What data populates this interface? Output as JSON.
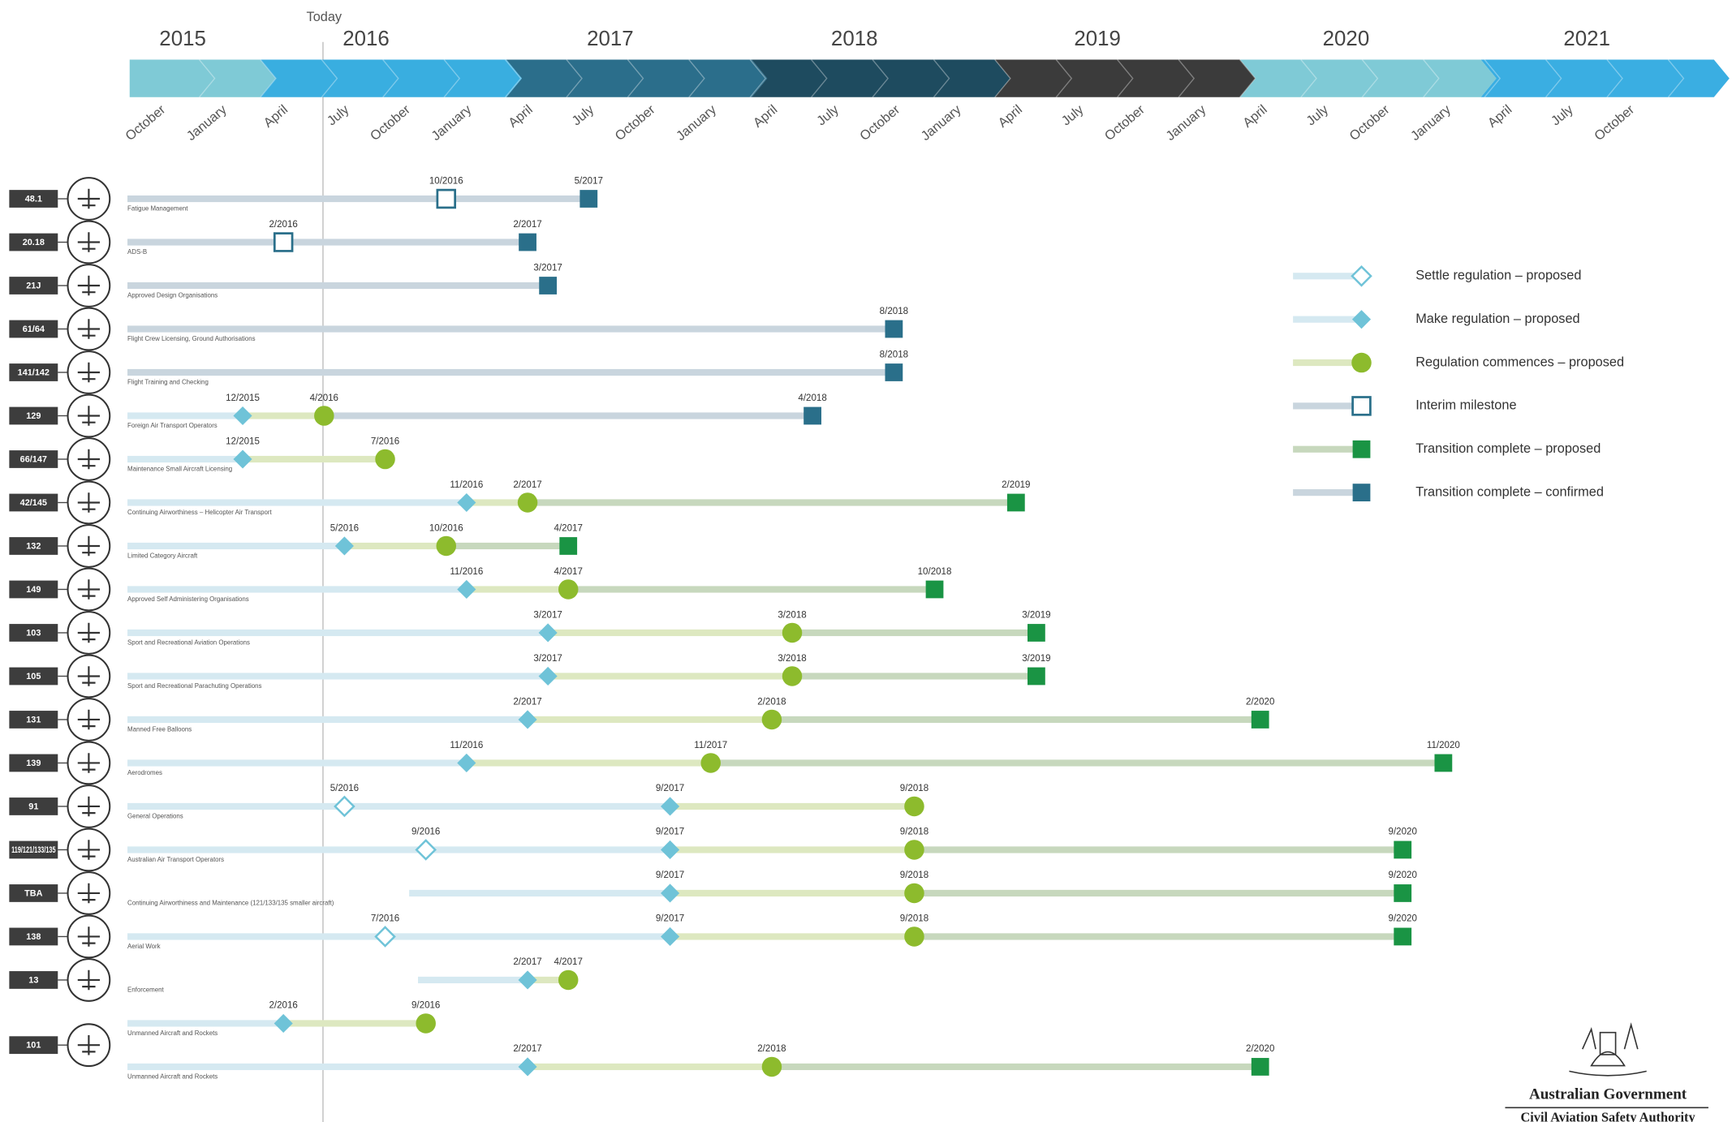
{
  "header": {
    "today": "Today",
    "years": [
      "2015",
      "2016",
      "2017",
      "2018",
      "2019",
      "2020",
      "2021"
    ],
    "months": [
      "October",
      "January",
      "April",
      "July",
      "October",
      "January",
      "April",
      "July",
      "October",
      "January",
      "April",
      "July",
      "October",
      "January",
      "April",
      "July",
      "October",
      "January",
      "April",
      "July",
      "October",
      "January",
      "April",
      "July",
      "October"
    ]
  },
  "rows": [
    {
      "code": "48.1",
      "bars": [
        {
          "description": "Fatigue Management",
          "milestones": [
            {
              "date": "10/2016",
              "legend": 3
            },
            {
              "date": "5/2017",
              "legend": 5
            }
          ]
        }
      ]
    },
    {
      "code": "20.18",
      "bars": [
        {
          "description": "ADS-B",
          "milestones": [
            {
              "date": "2/2016",
              "legend": 3
            },
            {
              "date": "2/2017",
              "legend": 5
            }
          ]
        }
      ]
    },
    {
      "code": "21J",
      "bars": [
        {
          "description": "Approved Design Organisations",
          "milestones": [
            {
              "date": "3/2017",
              "legend": 5
            }
          ]
        }
      ]
    },
    {
      "code": "61/64",
      "bars": [
        {
          "description": "Flight Crew Licensing, Ground Authorisations",
          "milestones": [
            {
              "date": "8/2018",
              "legend": 5
            }
          ]
        }
      ]
    },
    {
      "code": "141/142",
      "bars": [
        {
          "description": "Flight Training and Checking",
          "milestones": [
            {
              "date": "8/2018",
              "legend": 5
            }
          ]
        }
      ]
    },
    {
      "code": "129",
      "bars": [
        {
          "description": "Foreign Air Transport Operators",
          "milestones": [
            {
              "date": "12/2015",
              "legend": 1
            },
            {
              "date": "4/2016",
              "legend": 2
            },
            {
              "date": "4/2018",
              "legend": 5
            }
          ]
        }
      ]
    },
    {
      "code": "66/147",
      "bars": [
        {
          "description": "Maintenance Small Aircraft Licensing",
          "milestones": [
            {
              "date": "12/2015",
              "legend": 1
            },
            {
              "date": "7/2016",
              "legend": 2
            }
          ]
        }
      ]
    },
    {
      "code": "42/145",
      "bars": [
        {
          "description": "Continuing Airworthiness – Helicopter Air Transport",
          "milestones": [
            {
              "date": "11/2016",
              "legend": 1
            },
            {
              "date": "2/2017",
              "legend": 2
            },
            {
              "date": "2/2019",
              "legend": 4
            }
          ]
        }
      ]
    },
    {
      "code": "132",
      "bars": [
        {
          "description": "Limited Category Aircraft",
          "milestones": [
            {
              "date": "5/2016",
              "legend": 1
            },
            {
              "date": "10/2016",
              "legend": 2
            },
            {
              "date": "4/2017",
              "legend": 4
            }
          ]
        }
      ]
    },
    {
      "code": "149",
      "bars": [
        {
          "description": "Approved Self Administering Organisations",
          "milestones": [
            {
              "date": "11/2016",
              "legend": 1
            },
            {
              "date": "4/2017",
              "legend": 2
            },
            {
              "date": "10/2018",
              "legend": 4
            }
          ]
        }
      ]
    },
    {
      "code": "103",
      "bars": [
        {
          "description": "Sport and Recreational Aviation Operations",
          "milestones": [
            {
              "date": "3/2017",
              "legend": 1
            },
            {
              "date": "3/2018",
              "legend": 2
            },
            {
              "date": "3/2019",
              "legend": 4
            }
          ]
        }
      ]
    },
    {
      "code": "105",
      "bars": [
        {
          "description": "Sport and Recreational Parachuting Operations",
          "milestones": [
            {
              "date": "3/2017",
              "legend": 1
            },
            {
              "date": "3/2018",
              "legend": 2
            },
            {
              "date": "3/2019",
              "legend": 4
            }
          ]
        }
      ]
    },
    {
      "code": "131",
      "bars": [
        {
          "description": "Manned Free Balloons",
          "milestones": [
            {
              "date": "2/2017",
              "legend": 1
            },
            {
              "date": "2/2018",
              "legend": 2
            },
            {
              "date": "2/2020",
              "legend": 4
            }
          ]
        }
      ]
    },
    {
      "code": "139",
      "bars": [
        {
          "description": "Aerodromes",
          "milestones": [
            {
              "date": "11/2016",
              "legend": 1
            },
            {
              "date": "11/2017",
              "legend": 2
            },
            {
              "date": "11/2020",
              "legend": 4
            }
          ]
        }
      ]
    },
    {
      "code": "91",
      "bars": [
        {
          "description": "General Operations",
          "milestones": [
            {
              "date": "5/2016",
              "legend": 0
            },
            {
              "date": "9/2017",
              "legend": 1
            },
            {
              "date": "9/2018",
              "legend": 2
            }
          ]
        }
      ]
    },
    {
      "code": "119/121/133/135",
      "bars": [
        {
          "description": "Australian Air Transport Operators",
          "milestones": [
            {
              "date": "9/2016",
              "legend": 0
            },
            {
              "date": "9/2017",
              "legend": 1
            },
            {
              "date": "9/2018",
              "legend": 2
            },
            {
              "date": "9/2020",
              "legend": 4
            }
          ]
        }
      ]
    },
    {
      "code": "TBA",
      "bars": [
        {
          "description": "Continuing Airworthiness and Maintenance (121/133/135 smaller aircraft)",
          "milestones": [
            {
              "date": "9/2017",
              "legend": 1
            },
            {
              "date": "9/2018",
              "legend": 2
            },
            {
              "date": "9/2020",
              "legend": 4
            }
          ]
        }
      ]
    },
    {
      "code": "138",
      "bars": [
        {
          "description": "Aerial Work",
          "milestones": [
            {
              "date": "7/2016",
              "legend": 0
            },
            {
              "date": "9/2017",
              "legend": 1
            },
            {
              "date": "9/2018",
              "legend": 2
            },
            {
              "date": "9/2020",
              "legend": 4
            }
          ]
        }
      ]
    },
    {
      "code": "13",
      "bars": [
        {
          "description": "Enforcement",
          "milestones": [
            {
              "date": "2/2017",
              "legend": 1
            },
            {
              "date": "4/2017",
              "legend": 2
            }
          ]
        }
      ]
    },
    {
      "code": "101",
      "bars": [
        {
          "description": "Unmanned Aircraft and Rockets",
          "milestones": [
            {
              "date": "2/2016",
              "legend": 1
            },
            {
              "date": "9/2016",
              "legend": 2
            }
          ]
        },
        {
          "description": "Unmanned Aircraft and Rockets",
          "milestones": [
            {
              "date": "2/2017",
              "legend": 1
            },
            {
              "date": "2/2018",
              "legend": 2
            },
            {
              "date": "2/2020",
              "legend": 4
            }
          ]
        }
      ]
    }
  ],
  "legend": [
    {
      "label": "Settle regulation – proposed"
    },
    {
      "label": "Make regulation – proposed"
    },
    {
      "label": "Regulation commences – proposed"
    },
    {
      "label": "Interim milestone"
    },
    {
      "label": "Transition complete – proposed"
    },
    {
      "label": "Transition complete – confirmed"
    }
  ],
  "footer": {
    "government": "Australian Government",
    "authority": "Civil Aviation Safety Authority"
  }
}
